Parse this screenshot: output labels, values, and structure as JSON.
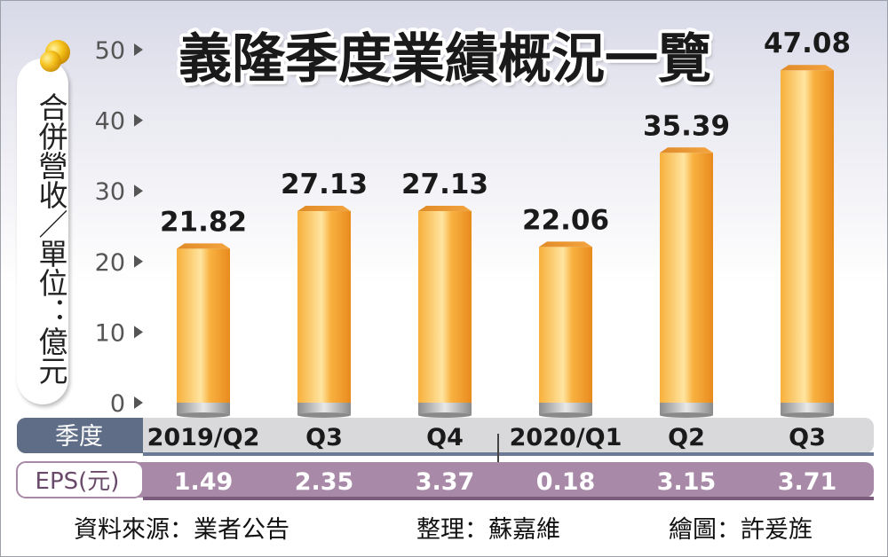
{
  "chart_data": {
    "type": "bar",
    "title": "義隆季度業績概況一覽",
    "ylabel": "合併營收／單位：億元",
    "ylim": [
      0,
      50
    ],
    "yticks": [
      0,
      10,
      20,
      30,
      40,
      50
    ],
    "categories": [
      "2019/Q2",
      "Q3",
      "Q4",
      "2020/Q1",
      "Q2",
      "Q3"
    ],
    "values": [
      21.82,
      27.13,
      27.13,
      22.06,
      35.39,
      47.08
    ],
    "value_labels": [
      "21.82",
      "27.13",
      "27.13",
      "22.06",
      "35.39",
      "47.08"
    ],
    "row_quarter_label": "季度",
    "row_eps_label": "EPS(元)",
    "eps": [
      "1.49",
      "2.35",
      "3.37",
      "0.18",
      "3.15",
      "3.71"
    ],
    "grid": false,
    "colors": {
      "bar_light": "#ffd27a",
      "bar_main": "#f5a623",
      "bar_dark": "#e0801a",
      "base_gray": "#9a9a9a",
      "quarter_row": "#d9d9dc",
      "quarter_tag": "#5d6b82",
      "eps_row": "#a98aa9",
      "eps_tag": "#ffffff"
    }
  },
  "footer": {
    "source": "資料來源：業者公告",
    "editor": "整理：蘇嘉維",
    "artist": "繪圖：許爰旌"
  }
}
